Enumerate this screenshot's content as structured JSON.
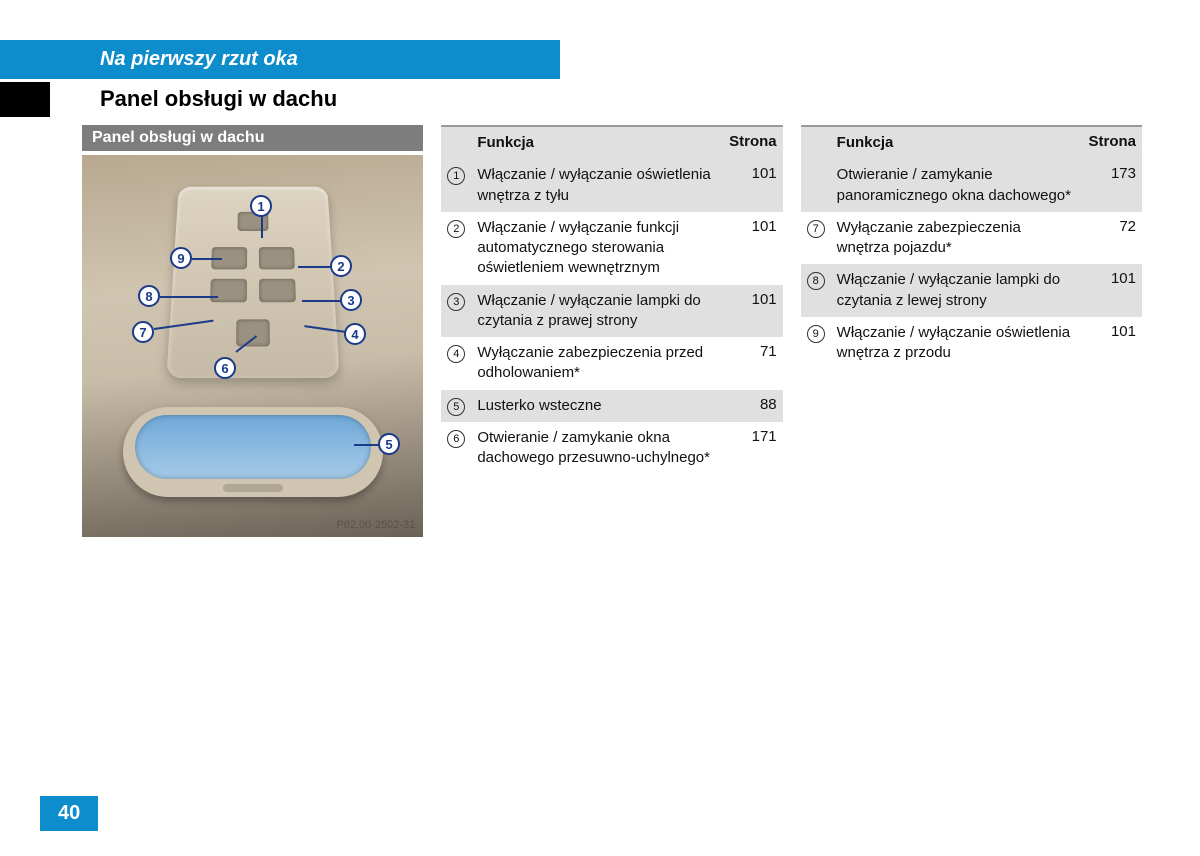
{
  "header": {
    "tab": "Na pierwszy rzut oka"
  },
  "section": {
    "title": "Panel obsługi w dachu"
  },
  "image": {
    "title": "Panel obsługi w dachu",
    "caption": "P82.00-2502-31"
  },
  "columns": {
    "func": "Funkcja",
    "page": "Strona"
  },
  "table1": [
    {
      "n": "1",
      "func": "Włączanie / wyłączanie oświetlenia wnętrza z tyłu",
      "page": "101"
    },
    {
      "n": "2",
      "func": "Włączanie / wyłączanie funkcji automatycznego sterowania oświetleniem wewnętrznym",
      "page": "101"
    },
    {
      "n": "3",
      "func": "Włączanie / wyłączanie lampki do czytania z prawej strony",
      "page": "101"
    },
    {
      "n": "4",
      "func": "Wyłączanie zabezpieczenia przed odholowaniem*",
      "page": "71"
    },
    {
      "n": "5",
      "func": "Lusterko wsteczne",
      "page": "88"
    },
    {
      "n": "6",
      "func": "Otwieranie / zamykanie okna dachowego przesuwno-uchylnego*",
      "page": "171"
    }
  ],
  "table2": [
    {
      "n": "",
      "func": "Otwieranie / zamykanie panoramicznego okna dachowego*",
      "page": "173"
    },
    {
      "n": "7",
      "func": "Wyłączanie zabezpieczenia wnętrza pojazdu*",
      "page": "72"
    },
    {
      "n": "8",
      "func": "Włączanie / wyłączanie lampki do czytania z lewej strony",
      "page": "101"
    },
    {
      "n": "9",
      "func": "Włączanie / wyłączanie oświetlenia wnętrza z przodu",
      "page": "101"
    }
  ],
  "pageNumber": "40",
  "callouts": {
    "1": "1",
    "2": "2",
    "3": "3",
    "4": "4",
    "5": "5",
    "6": "6",
    "7": "7",
    "8": "8",
    "9": "9"
  }
}
